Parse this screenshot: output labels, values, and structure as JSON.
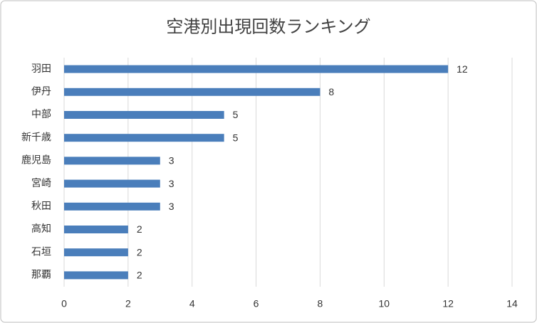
{
  "chart_data": {
    "type": "bar",
    "title": "空港別出現回数ランキング",
    "categories": [
      "羽田",
      "伊丹",
      "中部",
      "新千歳",
      "鹿児島",
      "宮崎",
      "秋田",
      "高知",
      "石垣",
      "那覇"
    ],
    "values": [
      12,
      8,
      5,
      5,
      3,
      3,
      3,
      2,
      2,
      2
    ],
    "color": "#4a7ebb",
    "xlim": [
      0,
      14
    ],
    "xticks": [
      0,
      2,
      4,
      6,
      8,
      10,
      12,
      14
    ],
    "grid": true
  }
}
